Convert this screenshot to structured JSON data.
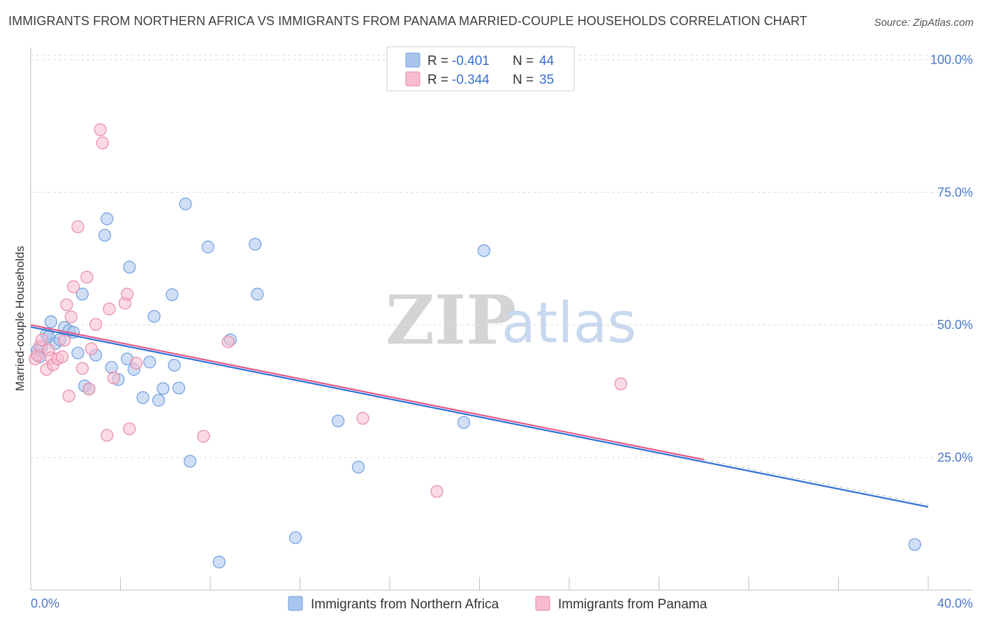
{
  "title": "IMMIGRANTS FROM NORTHERN AFRICA VS IMMIGRANTS FROM PANAMA MARRIED-COUPLE HOUSEHOLDS CORRELATION CHART",
  "source": "Source: ZipAtlas.com",
  "watermark": {
    "zip": "ZIP",
    "atlas": "atlas"
  },
  "legend": {
    "r_label": "R =",
    "n_label": "N =",
    "rows": [
      {
        "r": "-0.401",
        "n": "44",
        "color": "#a9c5ee",
        "stroke": "#6f9ee0"
      },
      {
        "r": "-0.344",
        "n": "35",
        "color": "#f7bccd",
        "stroke": "#e88aa6"
      }
    ]
  },
  "chart_data": {
    "type": "scatter",
    "title": "IMMIGRANTS FROM NORTHERN AFRICA VS IMMIGRANTS FROM PANAMA MARRIED-COUPLE HOUSEHOLDS CORRELATION CHART",
    "xlabel": "",
    "ylabel": "Married-couple Households",
    "xlim": [
      0,
      40
    ],
    "ylim": [
      0,
      104
    ],
    "x_tick_labels": [
      "0.0%",
      "40.0%"
    ],
    "y_tick_labels": [
      "100.0%",
      "75.0%",
      "50.0%",
      "25.0%"
    ],
    "y_ticks": [
      100,
      75,
      50,
      25
    ],
    "grid": true,
    "series": [
      {
        "name": "Immigrants from Northern Africa",
        "color": "#6f9ee0",
        "fill": "#a9c5ee",
        "trend_color": "#2f6fd6",
        "trend": {
          "x0": 0,
          "y0": 49.6,
          "x1": 40,
          "y1": 15.7
        },
        "points": [
          [
            0.3,
            45.2
          ],
          [
            0.4,
            44.0
          ],
          [
            0.5,
            45.8
          ],
          [
            0.7,
            48.2
          ],
          [
            0.8,
            47.8
          ],
          [
            0.9,
            50.6
          ],
          [
            1.1,
            46.5
          ],
          [
            1.3,
            47.2
          ],
          [
            1.5,
            49.5
          ],
          [
            1.7,
            48.9
          ],
          [
            1.9,
            48.6
          ],
          [
            2.1,
            44.7
          ],
          [
            2.3,
            55.8
          ],
          [
            2.4,
            38.5
          ],
          [
            2.6,
            37.9
          ],
          [
            2.9,
            44.3
          ],
          [
            3.3,
            66.9
          ],
          [
            3.4,
            70.0
          ],
          [
            3.6,
            42.0
          ],
          [
            3.9,
            39.7
          ],
          [
            4.3,
            43.6
          ],
          [
            4.4,
            60.9
          ],
          [
            4.6,
            41.6
          ],
          [
            5.0,
            36.3
          ],
          [
            5.3,
            43.0
          ],
          [
            5.5,
            51.6
          ],
          [
            5.7,
            35.8
          ],
          [
            5.9,
            38.0
          ],
          [
            6.3,
            55.7
          ],
          [
            6.4,
            42.4
          ],
          [
            6.6,
            38.1
          ],
          [
            6.9,
            72.8
          ],
          [
            7.1,
            24.3
          ],
          [
            7.9,
            64.7
          ],
          [
            8.4,
            5.3
          ],
          [
            8.9,
            47.2
          ],
          [
            10.0,
            65.2
          ],
          [
            10.1,
            55.8
          ],
          [
            11.8,
            9.9
          ],
          [
            13.7,
            31.9
          ],
          [
            14.6,
            23.2
          ],
          [
            19.3,
            31.6
          ],
          [
            20.2,
            64.0
          ],
          [
            39.4,
            8.6
          ]
        ]
      },
      {
        "name": "Immigrants from Panama",
        "color": "#e88aa6",
        "fill": "#f7bccd",
        "trend_color": "#e05a86",
        "trend": {
          "x0": 0,
          "y0": 50.0,
          "x1": 30,
          "y1": 24.6
        },
        "points": [
          [
            0.2,
            43.6
          ],
          [
            0.3,
            44.3
          ],
          [
            0.4,
            46.0
          ],
          [
            0.5,
            47.2
          ],
          [
            0.7,
            41.6
          ],
          [
            0.8,
            45.3
          ],
          [
            0.9,
            43.8
          ],
          [
            1.0,
            42.5
          ],
          [
            1.2,
            43.6
          ],
          [
            1.4,
            44.0
          ],
          [
            1.5,
            47.1
          ],
          [
            1.6,
            53.8
          ],
          [
            1.7,
            36.6
          ],
          [
            1.8,
            51.5
          ],
          [
            1.9,
            57.2
          ],
          [
            2.1,
            68.5
          ],
          [
            2.3,
            41.8
          ],
          [
            2.5,
            59.0
          ],
          [
            2.6,
            37.9
          ],
          [
            2.7,
            45.5
          ],
          [
            2.9,
            50.1
          ],
          [
            3.1,
            86.8
          ],
          [
            3.2,
            84.3
          ],
          [
            3.4,
            29.2
          ],
          [
            3.5,
            53.0
          ],
          [
            3.7,
            40.0
          ],
          [
            4.2,
            54.1
          ],
          [
            4.3,
            55.8
          ],
          [
            4.4,
            30.4
          ],
          [
            4.7,
            42.8
          ],
          [
            7.7,
            29.0
          ],
          [
            8.8,
            46.8
          ],
          [
            14.8,
            32.4
          ],
          [
            18.1,
            18.6
          ],
          [
            26.3,
            38.9
          ]
        ]
      }
    ]
  }
}
